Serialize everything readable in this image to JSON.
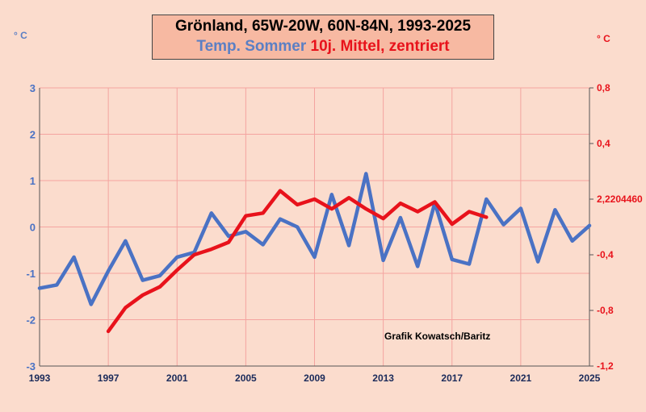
{
  "title": {
    "line1": "Grönland, 65W-20W, 60N-84N, 1993-2025",
    "line2_blue": "Temp. Sommer",
    "line2_red": "10j. Mittel, zentriert"
  },
  "units": {
    "left": "° C",
    "right": "° C"
  },
  "credit": "Grafik Kowatsch/Baritz",
  "colors": {
    "background": "#fbdccd",
    "title_box": "#f7b9a2",
    "grid": "#f4a4a0",
    "blue": "#4a72c4",
    "red": "#e8121b"
  },
  "chart_data": {
    "type": "line",
    "title": "Grönland, 65W-20W, 60N-84N, 1993-2025",
    "x": [
      1993,
      1994,
      1995,
      1996,
      1997,
      1998,
      1999,
      2000,
      2001,
      2002,
      2003,
      2004,
      2005,
      2006,
      2007,
      2008,
      2009,
      2010,
      2011,
      2012,
      2013,
      2014,
      2015,
      2016,
      2017,
      2018,
      2019,
      2020,
      2021,
      2022,
      2023,
      2024,
      2025
    ],
    "xlim": [
      1993,
      2025
    ],
    "x_ticks": [
      "1993",
      "1997",
      "2001",
      "2005",
      "2009",
      "2013",
      "2017",
      "2021",
      "2025"
    ],
    "y_left": {
      "ylim": [
        -3,
        3
      ],
      "ticks": [
        "3",
        "2",
        "1",
        "0",
        "-1",
        "-2",
        "-3"
      ]
    },
    "y_right": {
      "ylim": [
        -1.2,
        0.8
      ],
      "ticks": [
        "0,8",
        "0,4",
        "2,2204460",
        "-0,4",
        "-0,8",
        "-1,2"
      ]
    },
    "grid": true,
    "series": [
      {
        "name": "Temp. Sommer",
        "axis": "left",
        "x": [
          1993,
          1994,
          1995,
          1996,
          1997,
          1998,
          1999,
          2000,
          2001,
          2002,
          2003,
          2004,
          2005,
          2006,
          2007,
          2008,
          2009,
          2010,
          2011,
          2012,
          2013,
          2014,
          2015,
          2016,
          2017,
          2018,
          2019,
          2020,
          2021,
          2022,
          2023,
          2024,
          2025
        ],
        "values": [
          -1.32,
          -1.25,
          -0.65,
          -1.67,
          -0.95,
          -0.3,
          -1.15,
          -1.05,
          -0.65,
          -0.55,
          0.3,
          -0.2,
          -0.1,
          -0.38,
          0.17,
          0.0,
          -0.65,
          0.7,
          -0.4,
          1.15,
          -0.72,
          0.2,
          -0.85,
          0.52,
          -0.7,
          -0.8,
          0.6,
          0.05,
          0.4,
          -0.75,
          0.37,
          -0.3,
          0.03
        ]
      },
      {
        "name": "10j. Mittel, zentriert",
        "axis": "right",
        "x": [
          1997,
          1998,
          1999,
          2000,
          2001,
          2002,
          2003,
          2004,
          2005,
          2006,
          2007,
          2008,
          2009,
          2010,
          2011,
          2012,
          2013,
          2014,
          2015,
          2016,
          2017,
          2018,
          2019
        ],
        "values": [
          -0.95,
          -0.78,
          -0.69,
          -0.63,
          -0.51,
          -0.4,
          -0.36,
          -0.31,
          -0.12,
          -0.1,
          0.06,
          -0.04,
          0.0,
          -0.07,
          0.01,
          -0.07,
          -0.14,
          -0.03,
          -0.09,
          -0.02,
          -0.18,
          -0.09,
          -0.13
        ]
      }
    ]
  }
}
